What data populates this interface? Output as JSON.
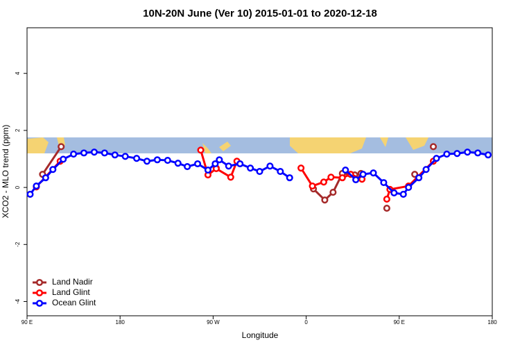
{
  "chart_data": {
    "type": "line",
    "title": "10N-20N June (Ver 10)   2015-01-01 to 2020-12-18",
    "x_label": "Longitude",
    "y_label": "XCO2 - MLO trend (ppm)",
    "xlim": [
      90,
      540
    ],
    "ylim": [
      -4.5,
      5.6
    ],
    "xticks": [
      {
        "value": 90,
        "label": "90 E"
      },
      {
        "value": 180,
        "label": "180"
      },
      {
        "value": 270,
        "label": "90 W"
      },
      {
        "value": 360,
        "label": "0"
      },
      {
        "value": 450,
        "label": "90 E"
      },
      {
        "value": 540,
        "label": "180"
      }
    ],
    "yticks": [
      -4,
      -2,
      0,
      2,
      4
    ],
    "legend_position": "bottom-left",
    "series": [
      {
        "name": "Land Nadir",
        "color": "#a52a2a",
        "x": [
          105,
          123,
          200,
          273,
          300,
          367,
          378,
          386,
          395,
          407,
          413,
          420,
          438,
          450,
          465,
          470,
          483
        ],
        "values": [
          0.46,
          1.43,
          null,
          0.68,
          null,
          -0.05,
          -0.44,
          -0.17,
          0.49,
          0.44,
          0.49,
          null,
          -0.73,
          null,
          0.46,
          null,
          1.43
        ]
      },
      {
        "name": "Land Glint",
        "color": "#ff0000",
        "x": [
          99,
          122,
          200,
          258,
          265,
          273,
          287,
          293,
          320,
          355,
          366,
          377,
          384,
          395,
          403,
          414,
          425,
          438,
          441,
          459,
          483
        ],
        "values": [
          0.02,
          0.92,
          null,
          1.31,
          0.44,
          0.66,
          0.36,
          0.92,
          null,
          0.68,
          0.05,
          0.19,
          0.36,
          0.34,
          0.46,
          0.29,
          null,
          -0.41,
          -0.07,
          0.05,
          0.92
        ]
      },
      {
        "name": "Ocean Glint",
        "color": "#0000ff",
        "x": [
          93,
          99,
          108,
          115,
          125,
          135,
          145,
          155,
          165,
          175,
          185,
          196,
          206,
          216,
          226,
          236,
          245,
          255,
          265,
          272,
          276,
          285,
          296,
          306,
          315,
          325,
          335,
          344,
          370,
          398,
          408,
          415,
          425,
          435,
          445,
          454,
          459,
          469,
          476,
          486,
          496,
          506,
          516,
          526,
          536
        ],
        "values": [
          -0.24,
          0.05,
          0.34,
          0.63,
          0.99,
          1.17,
          1.21,
          1.24,
          1.21,
          1.14,
          1.09,
          1.02,
          0.92,
          0.97,
          0.95,
          0.85,
          0.73,
          0.83,
          0.61,
          0.83,
          0.97,
          0.75,
          0.83,
          0.68,
          0.56,
          0.75,
          0.56,
          0.34,
          null,
          0.61,
          0.27,
          0.46,
          0.51,
          0.17,
          -0.19,
          -0.24,
          0,
          0.34,
          0.63,
          1.02,
          1.17,
          1.19,
          1.24,
          1.21,
          1.14
        ]
      }
    ]
  }
}
